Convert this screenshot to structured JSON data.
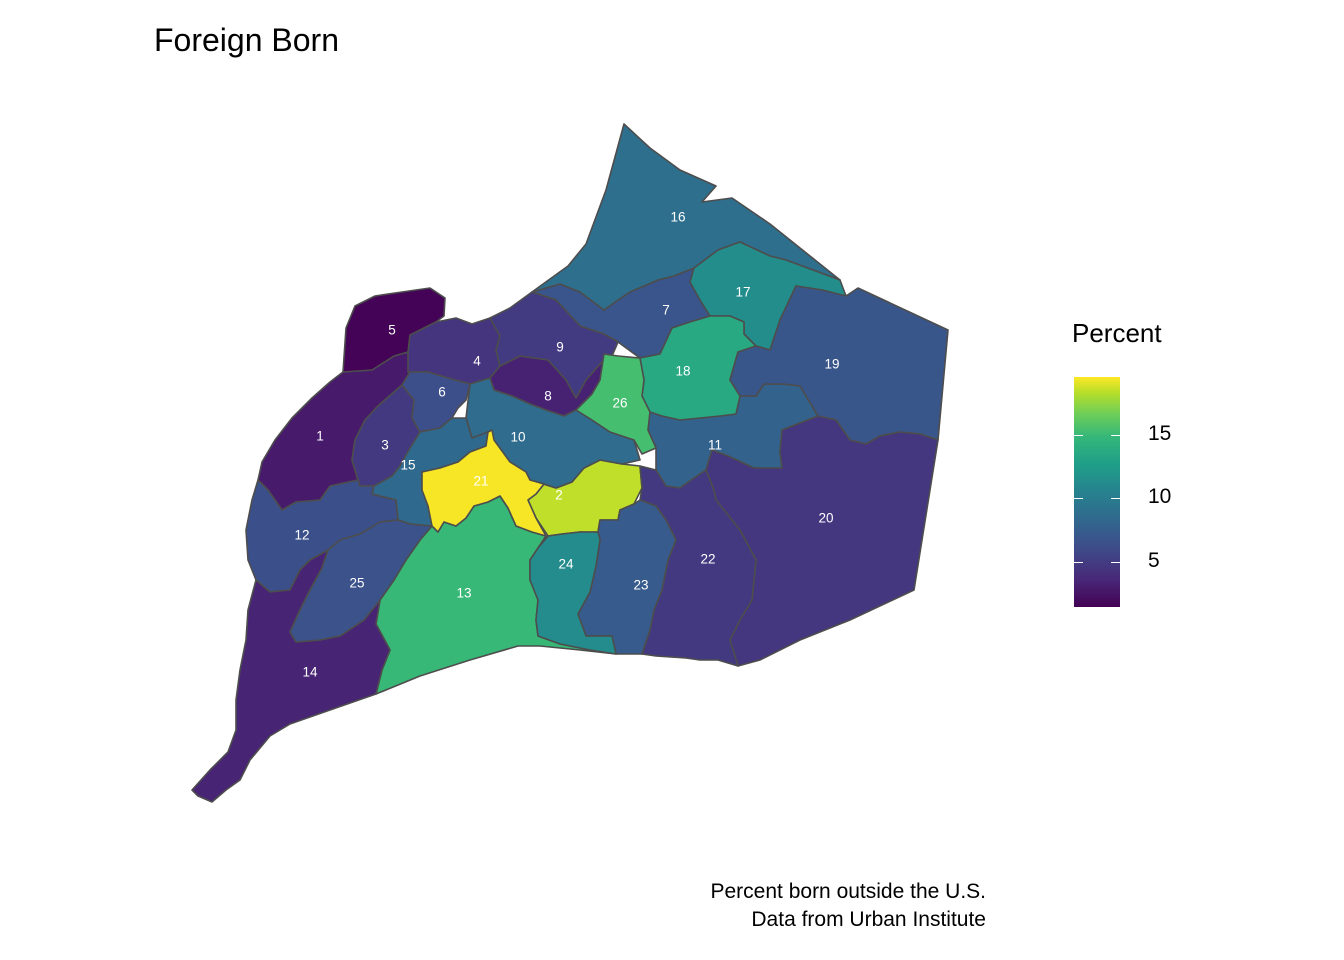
{
  "title": "Foreign Born",
  "caption": {
    "line1": "Percent born outside the U.S.",
    "line2": "Data from Urban Institute"
  },
  "legend": {
    "title": "Percent",
    "palette": "viridis",
    "range": [
      1.5,
      19.5
    ],
    "ticks": [
      {
        "value": 5,
        "label": "5"
      },
      {
        "value": 10,
        "label": "10"
      },
      {
        "value": 15,
        "label": "15"
      }
    ]
  },
  "districts": [
    {
      "id": "1",
      "label": "1",
      "percent": 2.8
    },
    {
      "id": "2",
      "label": "2",
      "percent": 17.8
    },
    {
      "id": "3",
      "label": "3",
      "percent": 4.5
    },
    {
      "id": "4",
      "label": "4",
      "percent": 4.2
    },
    {
      "id": "5",
      "label": "5",
      "percent": 1.6
    },
    {
      "id": "6",
      "label": "6",
      "percent": 5.8
    },
    {
      "id": "7",
      "label": "7",
      "percent": 6.2
    },
    {
      "id": "8",
      "label": "8",
      "percent": 3.2
    },
    {
      "id": "9",
      "label": "9",
      "percent": 4.6
    },
    {
      "id": "10",
      "label": "10",
      "percent": 7.8
    },
    {
      "id": "11",
      "label": "11",
      "percent": 7.2
    },
    {
      "id": "12",
      "label": "12",
      "percent": 5.9
    },
    {
      "id": "13",
      "label": "13",
      "percent": 13.6
    },
    {
      "id": "14",
      "label": "14",
      "percent": 3.3
    },
    {
      "id": "15",
      "label": "15",
      "percent": 7.6
    },
    {
      "id": "16",
      "label": "16",
      "percent": 8.0
    },
    {
      "id": "17",
      "label": "17",
      "percent": 10.3
    },
    {
      "id": "18",
      "label": "18",
      "percent": 12.4
    },
    {
      "id": "19",
      "label": "19",
      "percent": 6.3
    },
    {
      "id": "20",
      "label": "20",
      "percent": 4.3
    },
    {
      "id": "21",
      "label": "21",
      "percent": 19.3
    },
    {
      "id": "22",
      "label": "22",
      "percent": 4.5
    },
    {
      "id": "23",
      "label": "23",
      "percent": 6.6
    },
    {
      "id": "24",
      "label": "24",
      "percent": 10.2
    },
    {
      "id": "25",
      "label": "25",
      "percent": 6.0
    },
    {
      "id": "26",
      "label": "26",
      "percent": 14.1
    }
  ]
}
